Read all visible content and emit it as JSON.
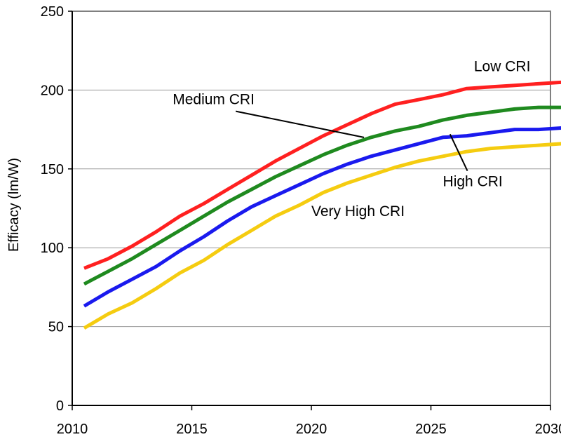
{
  "chart_data": {
    "type": "line",
    "title": "",
    "xlabel": "",
    "ylabel": "Efficacy (lm/W)",
    "xlim": [
      2010,
      2030
    ],
    "ylim": [
      0,
      250
    ],
    "x_ticks": [
      2010,
      2015,
      2020,
      2025,
      2030
    ],
    "y_ticks": [
      0,
      50,
      100,
      150,
      200,
      250
    ],
    "grid": true,
    "legend": "none",
    "x": [
      2010.5,
      2011.5,
      2012.5,
      2013.5,
      2014.5,
      2015.5,
      2016.5,
      2017.5,
      2018.5,
      2019.5,
      2020.5,
      2021.5,
      2022.5,
      2023.5,
      2024.5,
      2025.5,
      2026.5,
      2027.5,
      2028.5,
      2029.5,
      2030.5
    ],
    "series": [
      {
        "name": "Low CRI",
        "color": "#ff2020",
        "values": [
          87,
          93,
          101,
          110,
          120,
          128,
          137,
          146,
          155,
          163,
          171,
          178,
          185,
          191,
          194,
          197,
          201,
          202,
          203,
          204,
          205
        ]
      },
      {
        "name": "Medium CRI",
        "color": "#1f8a1f",
        "values": [
          77,
          85,
          93,
          102,
          111,
          120,
          129,
          137,
          145,
          152,
          159,
          165,
          170,
          174,
          177,
          181,
          184,
          186,
          188,
          189,
          189
        ]
      },
      {
        "name": "High CRI",
        "color": "#1a1aee",
        "values": [
          63,
          72,
          80,
          88,
          98,
          107,
          117,
          126,
          133,
          140,
          147,
          153,
          158,
          162,
          166,
          170,
          171,
          173,
          175,
          175,
          176
        ]
      },
      {
        "name": "Very High CRI",
        "color": "#f5cc10",
        "values": [
          49,
          58,
          65,
          74,
          84,
          92,
          102,
          111,
          120,
          127,
          135,
          141,
          146,
          151,
          155,
          158,
          161,
          163,
          164,
          165,
          166
        ]
      }
    ],
    "annotations": [
      {
        "text": "Low CRI",
        "series": "Low CRI",
        "x": 2026.8,
        "y": 212,
        "has_leader": false
      },
      {
        "text": "Medium CRI",
        "series": "Medium CRI",
        "x": 2014.2,
        "y": 191,
        "has_leader": true,
        "leader_to": [
          2022.2,
          170
        ]
      },
      {
        "text": "High CRI",
        "series": "High CRI",
        "x": 2025.5,
        "y": 139,
        "has_leader": true,
        "leader_to": [
          2025.8,
          172
        ]
      },
      {
        "text": "Very High CRI",
        "series": "Very High CRI",
        "x": 2020,
        "y": 120,
        "has_leader": false
      }
    ]
  }
}
